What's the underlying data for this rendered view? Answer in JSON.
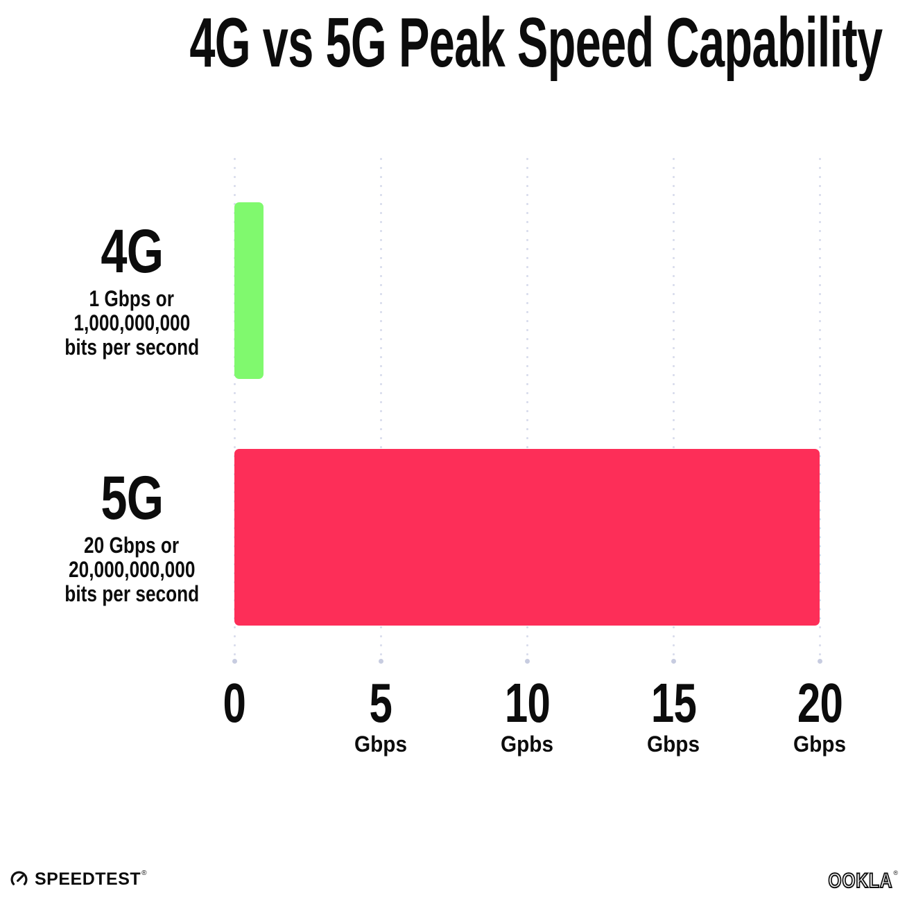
{
  "title": "4G vs 5G Peak Speed Capability",
  "chart_data": {
    "type": "bar",
    "orientation": "horizontal",
    "title": "4G vs 5G Peak Speed Capability",
    "xlabel": "",
    "ylabel": "",
    "xlim": [
      0,
      20
    ],
    "grid": "vertical-dotted",
    "legend": "none",
    "categories": [
      "4G",
      "5G"
    ],
    "values": [
      1,
      20
    ],
    "unit": "Gbps",
    "rows": [
      {
        "name": "4G",
        "value": 1,
        "bar_color": "#80F96E",
        "sublines": [
          "1 Gbps or",
          "1,000,000,000",
          "bits per second"
        ]
      },
      {
        "name": "5G",
        "value": 20,
        "bar_color": "#FD2E58",
        "sublines": [
          "20 Gbps or",
          "20,000,000,000",
          "bits per second"
        ]
      }
    ],
    "x_ticks": [
      {
        "value": 0,
        "label": "0",
        "unit": ""
      },
      {
        "value": 5,
        "label": "5",
        "unit": "Gbps"
      },
      {
        "value": 10,
        "label": "10",
        "unit": "Gpbs"
      },
      {
        "value": 15,
        "label": "15",
        "unit": "Gbps"
      },
      {
        "value": 20,
        "label": "20",
        "unit": "Gbps"
      }
    ]
  },
  "colors": {
    "bar_4g": "#80F96E",
    "bar_5g": "#FD2E58",
    "gridline_dot": "#D8DCEC",
    "gridline_end_dot": "#C7CCE0",
    "text": "#0C0C0C",
    "background": "#FFFFFF"
  },
  "footer": {
    "speedtest_label": "SPEEDTEST",
    "speedtest_trademark": "®",
    "ookla_label": "OOKLA",
    "ookla_trademark": "®"
  }
}
